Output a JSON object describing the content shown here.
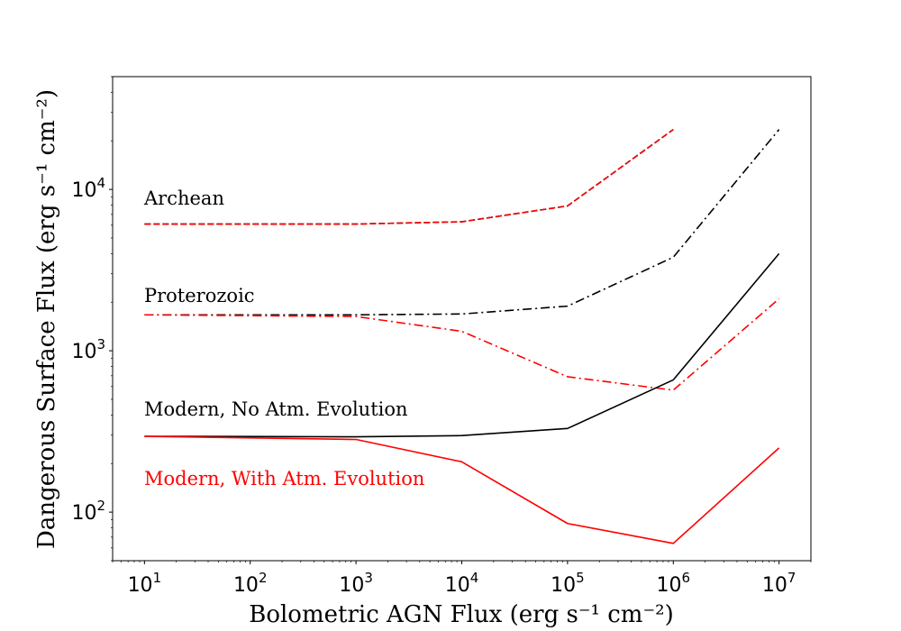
{
  "chart_data": {
    "type": "line",
    "title": "",
    "xlabel": "Bolometric AGN Flux (erg s⁻¹ cm⁻²)",
    "ylabel": "Dangerous Surface Flux (erg s⁻¹ cm⁻²)",
    "xscale": "log",
    "yscale": "log",
    "xlim": [
      5,
      20000000
    ],
    "ylim": [
      50,
      50000
    ],
    "xticks": [
      10,
      100,
      1000,
      10000,
      100000,
      1000000,
      10000000
    ],
    "xtick_labels": [
      {
        "base": "10",
        "exp": "1"
      },
      {
        "base": "10",
        "exp": "2"
      },
      {
        "base": "10",
        "exp": "3"
      },
      {
        "base": "10",
        "exp": "4"
      },
      {
        "base": "10",
        "exp": "5"
      },
      {
        "base": "10",
        "exp": "6"
      },
      {
        "base": "10",
        "exp": "7"
      }
    ],
    "yticks": [
      100,
      1000,
      10000
    ],
    "ytick_labels": [
      {
        "base": "10",
        "exp": "2"
      },
      {
        "base": "10",
        "exp": "3"
      },
      {
        "base": "10",
        "exp": "4"
      }
    ],
    "grid": false,
    "annotations": [
      {
        "text": "Archean",
        "color": "#000000"
      },
      {
        "text": "Proterozoic",
        "color": "#000000"
      },
      {
        "text": "Modern, No Atm. Evolution",
        "color": "#000000"
      },
      {
        "text": "Modern, With Atm. Evolution",
        "color": "#ff0000"
      }
    ],
    "series": [
      {
        "group": "Archean",
        "color": "#000000",
        "style": "dashed",
        "x": [
          10,
          1000,
          10000,
          100000,
          1000000
        ],
        "y": [
          6100,
          6100,
          6300,
          7900,
          23500
        ]
      },
      {
        "group": "Archean",
        "color": "#ff0000",
        "style": "dashed",
        "x": [
          10,
          1000,
          10000,
          100000,
          1000000
        ],
        "y": [
          6100,
          6100,
          6300,
          7900,
          23500
        ]
      },
      {
        "group": "Proterozoic",
        "color": "#000000",
        "style": "dashdot",
        "x": [
          10,
          1000,
          10000,
          100000,
          1000000,
          10000000
        ],
        "y": [
          1670,
          1670,
          1690,
          1890,
          3800,
          23500
        ]
      },
      {
        "group": "Proterozoic",
        "color": "#ff0000",
        "style": "dashdot",
        "x": [
          10,
          1000,
          10000,
          100000,
          1000000,
          10000000
        ],
        "y": [
          1670,
          1630,
          1320,
          690,
          570,
          2100
        ]
      },
      {
        "group": "Modern, No Atm. Evolution",
        "color": "#000000",
        "style": "solid",
        "x": [
          10,
          1000,
          10000,
          100000,
          1000000,
          10000000
        ],
        "y": [
          295,
          293,
          298,
          330,
          660,
          4000
        ]
      },
      {
        "group": "Modern, With Atm. Evolution",
        "color": "#ff0000",
        "style": "solid",
        "x": [
          10,
          1000,
          10000,
          100000,
          1000000,
          10000000
        ],
        "y": [
          295,
          282,
          205,
          85,
          64,
          250
        ]
      }
    ]
  }
}
